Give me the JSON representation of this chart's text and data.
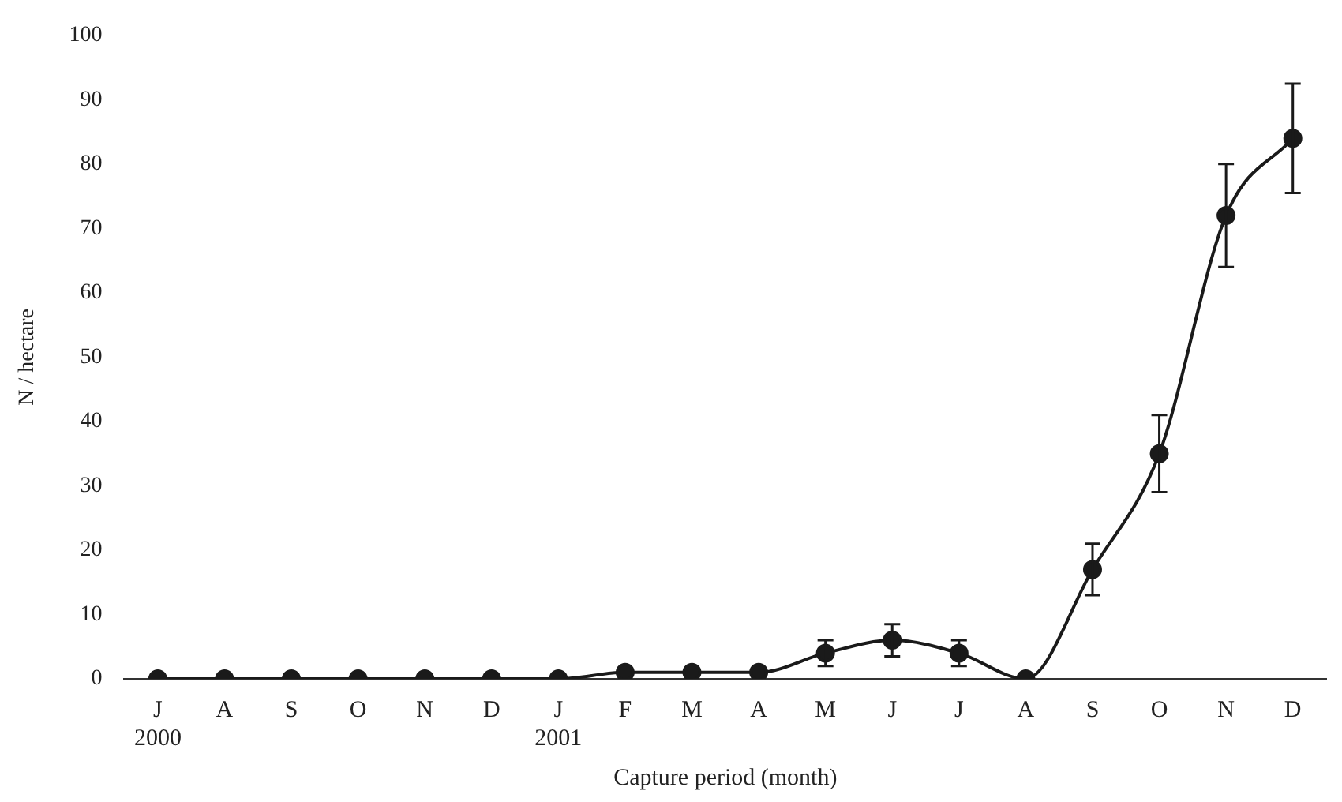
{
  "chart_data": {
    "type": "line",
    "xlabel": "Capture period (month)",
    "ylabel": "N / hectare",
    "categories": [
      "J\n2000",
      "A",
      "S",
      "O",
      "N",
      "D",
      "J\n2001",
      "F",
      "M",
      "A",
      "M",
      "J",
      "J",
      "A",
      "S",
      "O",
      "N",
      "D"
    ],
    "series": [
      {
        "color": "#1a1a1a",
        "values": [
          0,
          0,
          0,
          0,
          0,
          0,
          0,
          1,
          1,
          1,
          4,
          6,
          4,
          0,
          17,
          35,
          72,
          84
        ],
        "errors": [
          null,
          null,
          null,
          null,
          null,
          null,
          null,
          null,
          null,
          null,
          2,
          2.5,
          2,
          null,
          4,
          6,
          8,
          8.5
        ]
      }
    ],
    "ylim": [
      0,
      100
    ],
    "yticks": [
      0,
      10,
      20,
      30,
      40,
      50,
      60,
      70,
      80,
      90,
      100
    ],
    "grid": false,
    "legend": false,
    "marker": "circle",
    "line_style": "solid"
  }
}
